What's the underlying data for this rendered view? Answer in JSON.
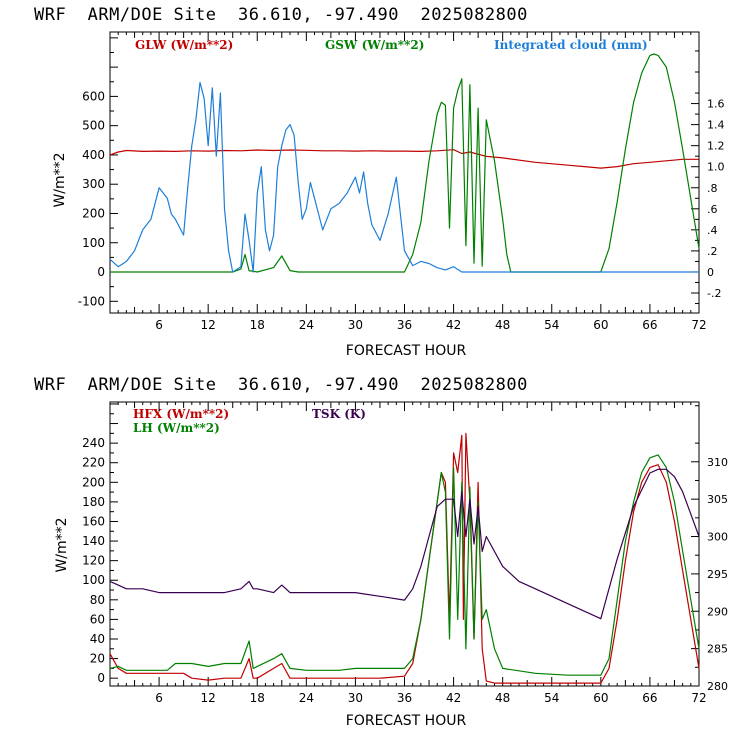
{
  "chart_data": [
    {
      "type": "line",
      "title": "WRF  ARM/DOE Site  36.610, -97.490  2025082800",
      "xlabel": "FORECAST HOUR",
      "ylabel": "W/m**2",
      "xlim": [
        0,
        72
      ],
      "ylim": [
        -140,
        820
      ],
      "y2lim": [
        -0.39,
        2.28
      ],
      "xticks": [
        "6",
        "12",
        "18",
        "24",
        "30",
        "36",
        "42",
        "48",
        "54",
        "60",
        "66",
        "72"
      ],
      "yticks": [
        "-100",
        "0",
        "100",
        "200",
        "300",
        "400",
        "500",
        "600"
      ],
      "y2ticks": [
        "-.2",
        "0",
        ".2",
        ".4",
        ".6",
        ".8",
        "1.0",
        "1.2",
        "1.4",
        "1.6"
      ],
      "colors": {
        "glw": "#c00000",
        "gsw": "#008000",
        "cloud": "#1e7fd8"
      },
      "series": [
        {
          "name": "GLW (W/m**2)",
          "axis": "left",
          "color": "#c00000",
          "x": [
            0,
            1,
            2,
            4,
            6,
            8,
            10,
            12,
            14,
            16,
            18,
            20,
            22,
            24,
            26,
            28,
            30,
            32,
            34,
            36,
            38,
            40,
            42,
            43,
            44,
            46,
            48,
            52,
            56,
            58,
            60,
            62,
            64,
            66,
            68,
            70,
            72
          ],
          "y": [
            400,
            410,
            415,
            412,
            413,
            412,
            414,
            413,
            415,
            414,
            417,
            415,
            417,
            416,
            414,
            414,
            413,
            414,
            413,
            413,
            412,
            414,
            418,
            405,
            410,
            395,
            390,
            375,
            365,
            360,
            355,
            360,
            370,
            375,
            380,
            385,
            385
          ]
        },
        {
          "name": "GSW (W/m**2)",
          "axis": "left",
          "color": "#008000",
          "x": [
            0,
            14,
            15,
            16,
            16.5,
            17,
            18,
            20,
            21,
            22,
            23,
            24,
            36,
            37,
            38,
            39,
            40,
            40.5,
            41,
            41.5,
            42,
            42.5,
            43,
            43.5,
            44,
            44.5,
            45,
            45.5,
            46,
            47,
            48,
            48.5,
            49,
            60,
            61,
            62,
            63,
            64,
            65,
            66,
            66.5,
            67,
            68,
            69,
            70,
            71,
            72
          ],
          "y": [
            0,
            0,
            0,
            10,
            60,
            5,
            0,
            15,
            55,
            5,
            0,
            0,
            0,
            60,
            170,
            380,
            540,
            580,
            570,
            150,
            560,
            620,
            660,
            90,
            640,
            30,
            560,
            20,
            520,
            380,
            180,
            60,
            0,
            0,
            80,
            240,
            420,
            580,
            680,
            740,
            745,
            740,
            700,
            580,
            420,
            250,
            80
          ]
        },
        {
          "name": "Integrated cloud (mm)",
          "axis": "right",
          "color": "#1e7fd8",
          "x": [
            0,
            1,
            2,
            3,
            4,
            5,
            6,
            7,
            7.5,
            8,
            9,
            9.5,
            10,
            10.5,
            11,
            11.5,
            12,
            12.5,
            13,
            13.5,
            14,
            14.5,
            15,
            16,
            16.5,
            17,
            17.5,
            18,
            18.5,
            19,
            19.5,
            20,
            20.5,
            21,
            21.5,
            22,
            22.5,
            23,
            23.5,
            24,
            24.5,
            25,
            25.5,
            26,
            27,
            28,
            29,
            30,
            30.5,
            31,
            31.5,
            32,
            33,
            34,
            35,
            36,
            37,
            38,
            39,
            40,
            41,
            42,
            43,
            44,
            45,
            46,
            48,
            50,
            54,
            60,
            66,
            72
          ],
          "y": [
            0.12,
            0.05,
            0.1,
            0.2,
            0.4,
            0.5,
            0.8,
            0.7,
            0.55,
            0.5,
            0.35,
            0.8,
            1.2,
            1.45,
            1.8,
            1.65,
            1.2,
            1.75,
            1.1,
            1.7,
            0.6,
            0.2,
            0.0,
            0.05,
            0.55,
            0.3,
            0.0,
            0.75,
            1.0,
            0.4,
            0.2,
            0.35,
            1.0,
            1.2,
            1.35,
            1.4,
            1.3,
            0.85,
            0.5,
            0.6,
            0.85,
            0.7,
            0.55,
            0.4,
            0.6,
            0.65,
            0.75,
            0.9,
            0.75,
            0.95,
            0.65,
            0.45,
            0.3,
            0.55,
            0.9,
            0.2,
            0.06,
            0.1,
            0.08,
            0.04,
            0.02,
            0.05,
            0.0,
            0.0,
            0.0,
            0.0,
            0.0,
            0.0,
            0.0,
            0.0,
            0.0,
            0.0
          ]
        }
      ]
    },
    {
      "type": "line",
      "title": "WRF  ARM/DOE Site  36.610, -97.490  2025082800",
      "xlabel": "FORECAST HOUR",
      "ylabel": "W/m**2",
      "xlim": [
        0,
        72
      ],
      "ylim": [
        -8,
        282
      ],
      "y2lim": [
        280,
        318
      ],
      "xticks": [
        "6",
        "12",
        "18",
        "24",
        "30",
        "36",
        "42",
        "48",
        "54",
        "60",
        "66",
        "72"
      ],
      "yticks": [
        "0",
        "20",
        "40",
        "60",
        "80",
        "100",
        "120",
        "140",
        "160",
        "180",
        "200",
        "220",
        "240"
      ],
      "y2ticks": [
        "280",
        "285",
        "290",
        "295",
        "300",
        "305",
        "310"
      ],
      "colors": {
        "hfx": "#c00000",
        "lh": "#008000",
        "tsk": "#3a0050"
      },
      "series": [
        {
          "name": "HFX (W/m**2)",
          "axis": "left",
          "color": "#c00000",
          "x": [
            0,
            1,
            2,
            4,
            6,
            9,
            10,
            12,
            14,
            16,
            17,
            17.5,
            18,
            20,
            21,
            22,
            24,
            28,
            30,
            33,
            36,
            37,
            38,
            39,
            40,
            40.5,
            41,
            41.5,
            42,
            42.5,
            43,
            43.2,
            43.5,
            44,
            44.5,
            45,
            45.5,
            46,
            47,
            48,
            52,
            56,
            60,
            61,
            62,
            63,
            64,
            65,
            66,
            67,
            68,
            69,
            70,
            71,
            72
          ],
          "y": [
            25,
            10,
            5,
            5,
            5,
            5,
            0,
            -2,
            0,
            0,
            20,
            0,
            0,
            10,
            15,
            0,
            0,
            0,
            0,
            0,
            2,
            15,
            60,
            120,
            180,
            210,
            200,
            60,
            230,
            210,
            248,
            60,
            250,
            180,
            40,
            200,
            30,
            -3,
            -5,
            -5,
            -5,
            -5,
            -5,
            10,
            60,
            120,
            170,
            200,
            215,
            218,
            200,
            160,
            110,
            60,
            10
          ]
        },
        {
          "name": "LH (W/m**2)",
          "axis": "left",
          "color": "#008000",
          "x": [
            0,
            1,
            2,
            4,
            6,
            7,
            8,
            10,
            12,
            14,
            16,
            17,
            17.5,
            18,
            20,
            21,
            22,
            24,
            28,
            30,
            33,
            36,
            37,
            38,
            39,
            40,
            40.5,
            41,
            41.5,
            42,
            42.5,
            43,
            43.5,
            44,
            44.5,
            45,
            45.5,
            46,
            47,
            48,
            52,
            56,
            60,
            61,
            62,
            63,
            64,
            65,
            66,
            67,
            68,
            69,
            70,
            71,
            72
          ],
          "y": [
            10,
            12,
            8,
            8,
            8,
            8,
            15,
            15,
            12,
            15,
            15,
            38,
            10,
            12,
            20,
            25,
            10,
            8,
            8,
            10,
            10,
            10,
            20,
            60,
            120,
            180,
            210,
            190,
            40,
            215,
            60,
            200,
            30,
            195,
            40,
            180,
            60,
            70,
            30,
            10,
            5,
            3,
            3,
            20,
            80,
            140,
            180,
            210,
            225,
            228,
            215,
            180,
            130,
            80,
            30
          ]
        },
        {
          "name": "TSK (K)",
          "axis": "right",
          "color": "#3a0050",
          "x": [
            0,
            1,
            2,
            4,
            6,
            8,
            10,
            12,
            14,
            16,
            17,
            17.5,
            18,
            20,
            21,
            22,
            24,
            28,
            30,
            33,
            36,
            37,
            38,
            39,
            40,
            41,
            42,
            42.5,
            43,
            43.5,
            44,
            44.5,
            45,
            45.5,
            46,
            48,
            50,
            52,
            56,
            60,
            62,
            64,
            66,
            67,
            68,
            69,
            70,
            71,
            72
          ],
          "y": [
            294,
            293.5,
            293,
            293,
            292.5,
            292.5,
            292.5,
            292.5,
            292.5,
            293,
            294,
            293,
            293,
            292.5,
            293.5,
            292.5,
            292.5,
            292.5,
            292.5,
            292,
            291.5,
            293,
            296,
            300,
            304,
            305,
            305,
            300,
            306,
            300,
            305,
            299,
            304,
            298,
            300,
            296,
            294,
            293,
            291,
            289,
            297,
            304,
            308.5,
            309,
            309,
            308,
            306,
            303,
            300
          ]
        }
      ]
    }
  ]
}
